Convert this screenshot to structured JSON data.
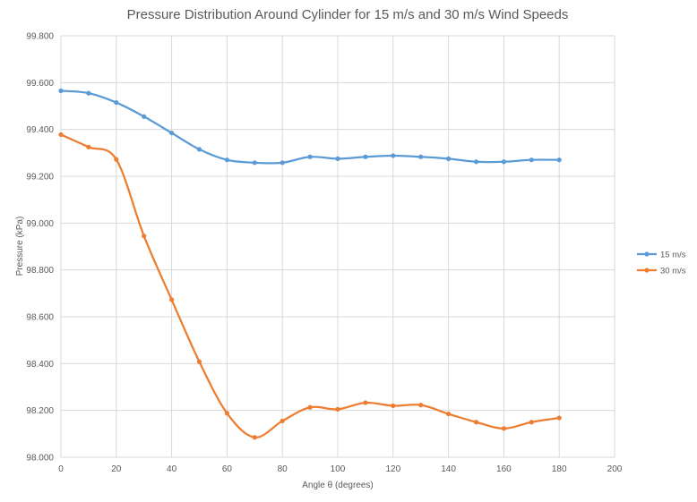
{
  "chart_data": {
    "type": "line",
    "title": "Pressure Distribution Around Cylinder for 15 m/s and 30 m/s Wind Speeds",
    "xlabel": "Angle θ (degrees)",
    "ylabel": "Pressure (kPa)",
    "xlim": [
      0,
      200
    ],
    "ylim": [
      98.0,
      99.8
    ],
    "xticks": [
      0,
      20,
      40,
      60,
      80,
      100,
      120,
      140,
      160,
      180,
      200
    ],
    "yticks": [
      "98.000",
      "98.200",
      "98.400",
      "98.600",
      "98.800",
      "99.000",
      "99.200",
      "99.400",
      "99.600",
      "99.800"
    ],
    "grid": true,
    "legend_position": "right",
    "x": [
      0,
      10,
      20,
      30,
      40,
      50,
      60,
      70,
      80,
      90,
      100,
      110,
      120,
      130,
      140,
      150,
      160,
      170,
      180
    ],
    "series": [
      {
        "name": "15 m/s",
        "color": "#5b9bd5",
        "values": [
          99.565,
          99.555,
          99.515,
          99.455,
          99.385,
          99.315,
          99.27,
          99.258,
          99.258,
          99.283,
          99.275,
          99.283,
          99.288,
          99.283,
          99.275,
          99.262,
          99.262,
          99.27,
          99.27
        ]
      },
      {
        "name": "30 m/s",
        "color": "#ed7d31",
        "values": [
          99.378,
          99.325,
          99.272,
          98.945,
          98.673,
          98.408,
          98.188,
          98.085,
          98.155,
          98.213,
          98.205,
          98.233,
          98.22,
          98.223,
          98.185,
          98.15,
          98.123,
          98.15,
          98.168
        ]
      }
    ]
  }
}
